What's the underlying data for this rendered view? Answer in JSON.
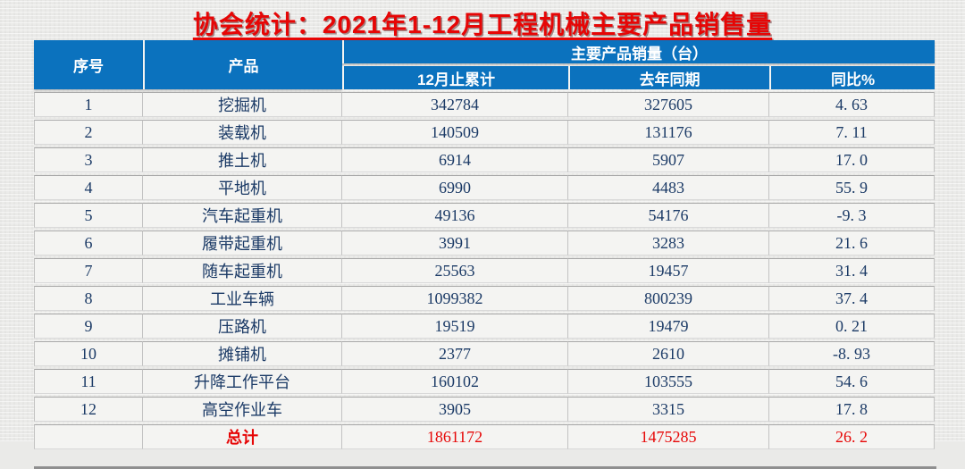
{
  "title": "协会统计：2021年1-12月工程机械主要产品销售量",
  "colors": {
    "title_red": "#e60606",
    "header_bg": "#0b72be",
    "header_text": "#ffffff",
    "body_text": "#1b3a66",
    "total_red": "#e60606",
    "page_bg": "#ebebe9"
  },
  "chart_data": {
    "type": "table",
    "title": "协会统计：2021年1-12月工程机械主要产品销售量",
    "column_group_header": "主要产品销量（台）",
    "columns": [
      "序号",
      "产品",
      "12月止累计",
      "去年同期",
      "同比%"
    ],
    "rows": [
      [
        "1",
        "挖掘机",
        "342784",
        "327605",
        "4. 63"
      ],
      [
        "2",
        "装载机",
        "140509",
        "131176",
        "7. 11"
      ],
      [
        "3",
        "推土机",
        "6914",
        "5907",
        "17. 0"
      ],
      [
        "4",
        "平地机",
        "6990",
        "4483",
        "55. 9"
      ],
      [
        "5",
        "汽车起重机",
        "49136",
        "54176",
        "-9. 3"
      ],
      [
        "6",
        "履带起重机",
        "3991",
        "3283",
        "21. 6"
      ],
      [
        "7",
        "随车起重机",
        "25563",
        "19457",
        "31. 4"
      ],
      [
        "8",
        "工业车辆",
        "1099382",
        "800239",
        "37. 4"
      ],
      [
        "9",
        "压路机",
        "19519",
        "19479",
        "0. 21"
      ],
      [
        "10",
        "摊铺机",
        "2377",
        "2610",
        "-8. 93"
      ],
      [
        "11",
        "升降工作平台",
        "160102",
        "103555",
        "54. 6"
      ],
      [
        "12",
        "高空作业车",
        "3905",
        "3315",
        "17. 8"
      ]
    ],
    "total_row": [
      "",
      "总计",
      "1861172",
      "1475285",
      "26. 2"
    ]
  }
}
